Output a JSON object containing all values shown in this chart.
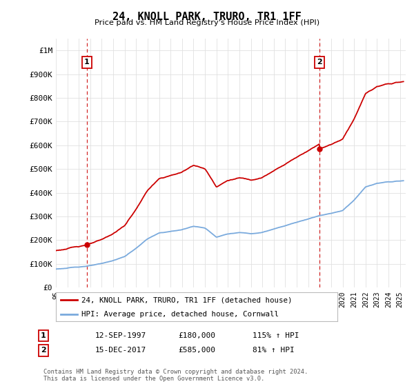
{
  "title": "24, KNOLL PARK, TRURO, TR1 1FF",
  "subtitle": "Price paid vs. HM Land Registry's House Price Index (HPI)",
  "ylim": [
    0,
    1050000
  ],
  "yticks": [
    0,
    100000,
    200000,
    300000,
    400000,
    500000,
    600000,
    700000,
    800000,
    900000,
    1000000
  ],
  "ytick_labels": [
    "£0",
    "£100K",
    "£200K",
    "£300K",
    "£400K",
    "£500K",
    "£600K",
    "£700K",
    "£800K",
    "£900K",
    "£1M"
  ],
  "xlim_start": 1995.3,
  "xlim_end": 2025.5,
  "sale1_x": 1997.71,
  "sale1_y": 180000,
  "sale2_x": 2017.96,
  "sale2_y": 585000,
  "line_color_red": "#cc0000",
  "line_color_blue": "#7aaadd",
  "dashed_color": "#cc0000",
  "legend_label_red": "24, KNOLL PARK, TRURO, TR1 1FF (detached house)",
  "legend_label_blue": "HPI: Average price, detached house, Cornwall",
  "annotation1_date": "12-SEP-1997",
  "annotation1_price": "£180,000",
  "annotation1_hpi": "115% ↑ HPI",
  "annotation2_date": "15-DEC-2017",
  "annotation2_price": "£585,000",
  "annotation2_hpi": "81% ↑ HPI",
  "footer": "Contains HM Land Registry data © Crown copyright and database right 2024.\nThis data is licensed under the Open Government Licence v3.0.",
  "background_color": "#ffffff",
  "grid_color": "#e0e0e0"
}
